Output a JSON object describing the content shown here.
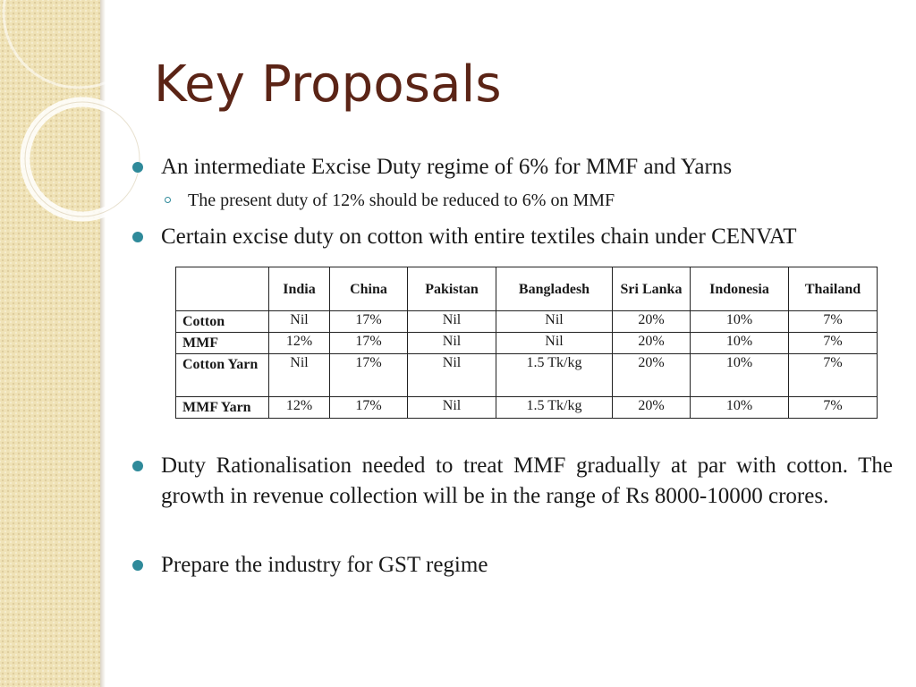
{
  "slide": {
    "title": "Key Proposals",
    "bullets": [
      {
        "text": "An intermediate Excise Duty regime of 6% for MMF and Yarns",
        "sub": [
          "The present duty of 12% should be reduced to 6% on MMF"
        ]
      },
      {
        "text": "Certain excise duty on cotton with entire textiles chain under CENVAT"
      },
      {
        "text": "Duty Rationalisation needed to treat MMF gradually at par with cotton. The growth in revenue collection will be in the range of Rs 8000-10000 crores."
      },
      {
        "text": "Prepare the industry for GST regime"
      }
    ],
    "table": {
      "headers": [
        "",
        "India",
        "China",
        "Pakistan",
        "Bangladesh",
        "Sri Lanka",
        "Indonesia",
        "Thailand"
      ],
      "rows": [
        {
          "label": "Cotton",
          "values": [
            "Nil",
            "17%",
            "Nil",
            "Nil",
            "20%",
            "10%",
            "7%"
          ]
        },
        {
          "label": "MMF",
          "values": [
            "12%",
            "17%",
            "Nil",
            "Nil",
            "20%",
            "10%",
            "7%"
          ]
        },
        {
          "label": "Cotton Yarn",
          "values": [
            "Nil",
            "17%",
            "Nil",
            "1.5 Tk/kg",
            "20%",
            "10%",
            "7%"
          ]
        },
        {
          "label": "MMF Yarn",
          "values": [
            "12%",
            "17%",
            "Nil",
            "1.5 Tk/kg",
            "20%",
            "10%",
            "7%"
          ]
        }
      ]
    },
    "colors": {
      "title": "#5b2416",
      "bullet": "#2f8a9a",
      "side_band": "#efe2b6"
    }
  }
}
